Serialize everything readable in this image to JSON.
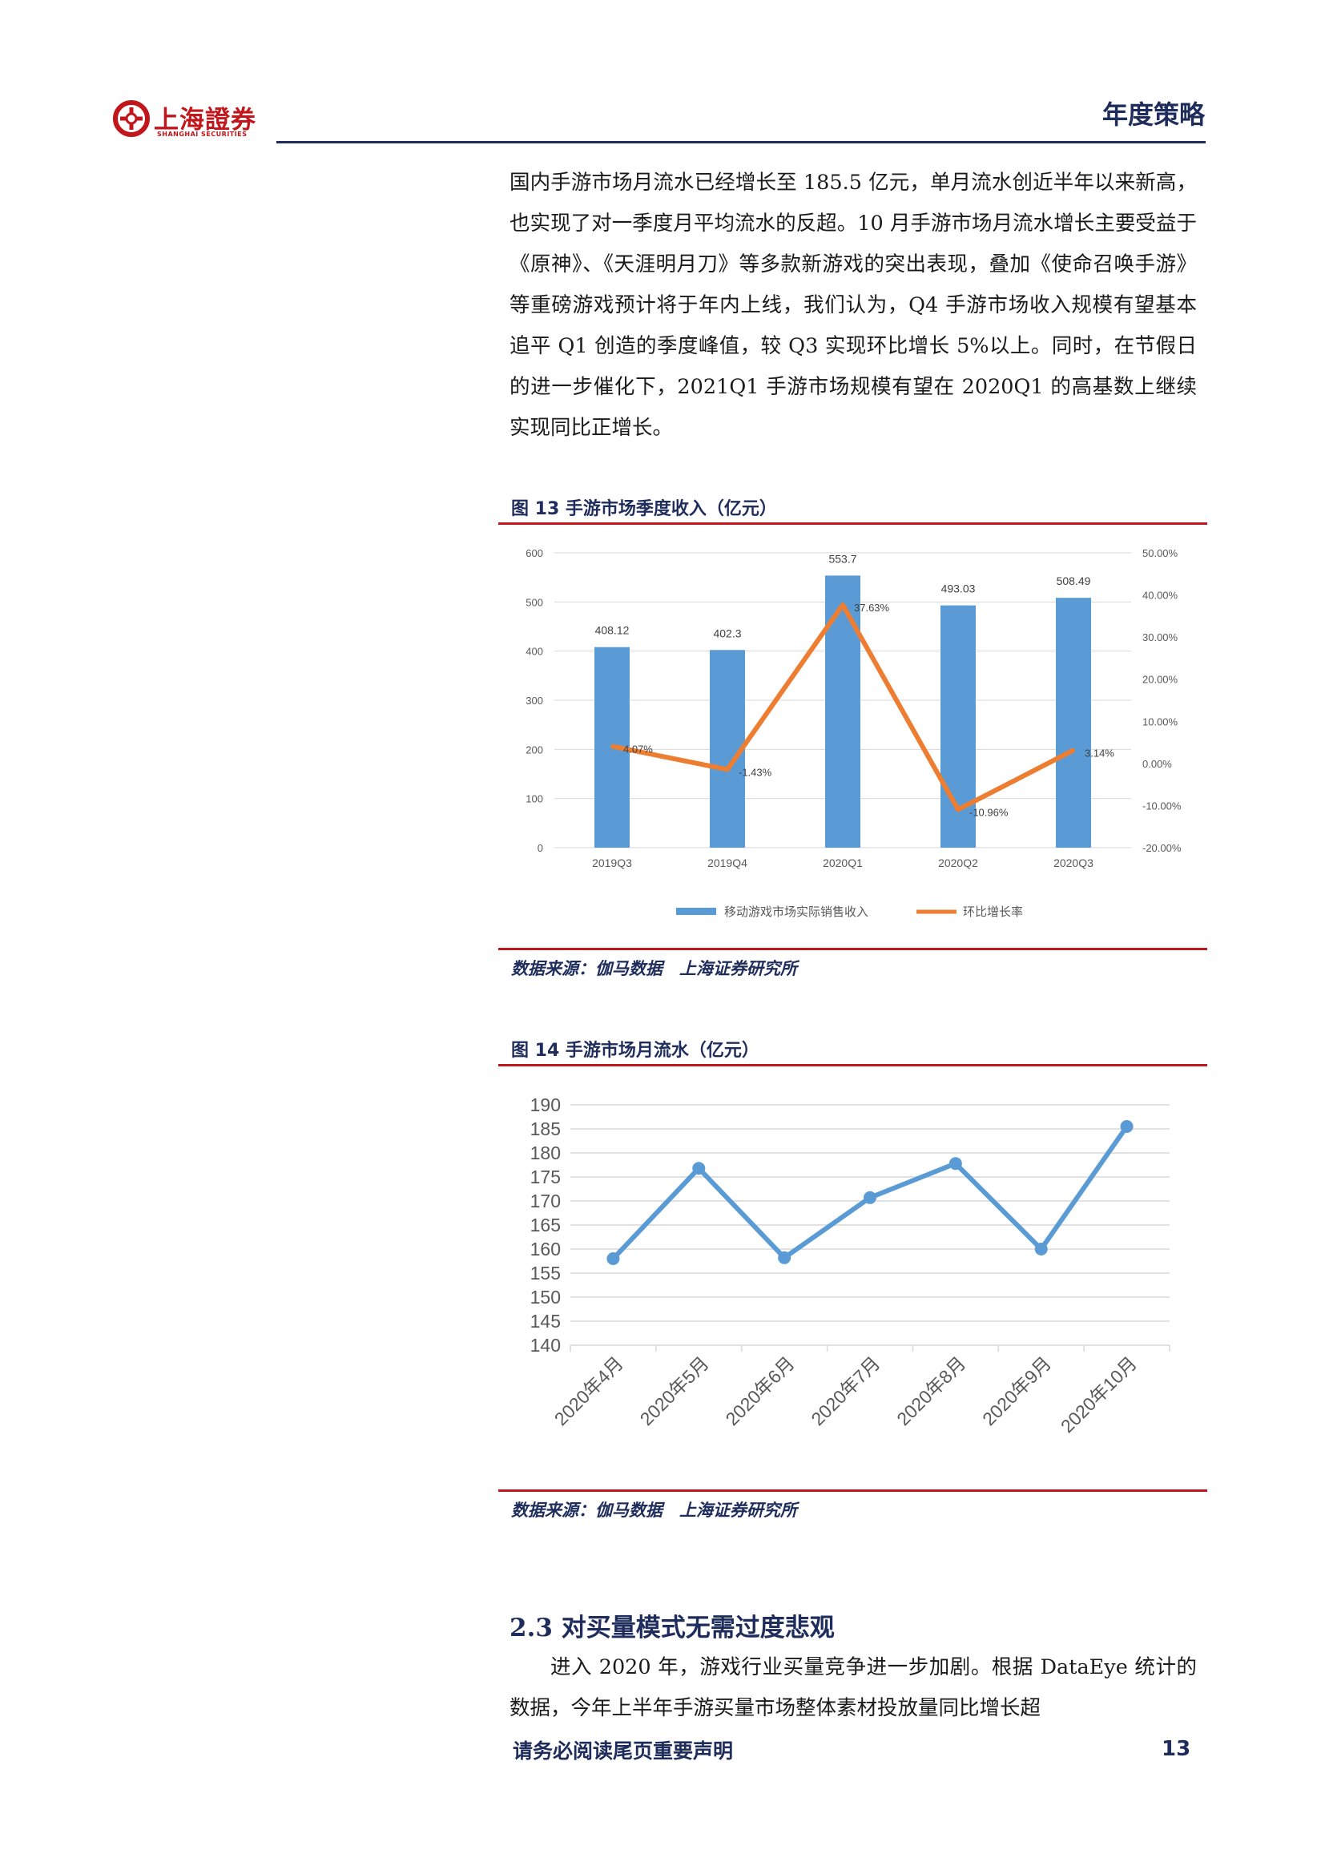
{
  "header": {
    "logo_text": "上海證券",
    "logo_sub": "SHANGHAI SECURITIES",
    "title": "年度策略"
  },
  "intro_paragraph": "国内手游市场月流水已经增长至 185.5 亿元，单月流水创近半年以来新高，也实现了对一季度月平均流水的反超。10 月手游市场月流水增长主要受益于《原神》、《天涯明月刀》等多款新游戏的突出表现，叠加《使命召唤手游》等重磅游戏预计将于年内上线，我们认为，Q4 手游市场收入规模有望基本追平 Q1 创造的季度峰值，较 Q3 实现环比增长 5%以上。同时，在节假日的进一步催化下，2021Q1 手游市场规模有望在 2020Q1 的高基数上继续实现同比正增长。",
  "figure13": {
    "title": "图 13 手游市场季度收入（亿元）",
    "source": "数据来源：伽马数据　上海证券研究所"
  },
  "figure14": {
    "title": "图 14 手游市场月流水（亿元）",
    "source": "数据来源：伽马数据　上海证券研究所"
  },
  "section": {
    "heading": "2.3 对买量模式无需过度悲观",
    "paragraph": "进入 2020 年，游戏行业买量竞争进一步加剧。根据 DataEye 统计的数据，今年上半年手游买量市场整体素材投放量同比增长超"
  },
  "footer": {
    "note": "请务必阅读尾页重要声明",
    "page_number": "13"
  },
  "colors": {
    "navy": "#1f2d5c",
    "red": "#c0161c",
    "bar_blue": "#5b9bd5",
    "line_orange": "#ed7d31"
  },
  "chart_data": [
    {
      "type": "bar",
      "categories": [
        "2019Q3",
        "2019Q4",
        "2020Q1",
        "2020Q2",
        "2020Q3"
      ],
      "series": [
        {
          "name": "移动游戏市场实际销售收入",
          "type": "bar",
          "axis": "left",
          "values": [
            408.12,
            402.3,
            553.7,
            493.03,
            508.49
          ],
          "labels": [
            "408.12",
            "402.3",
            "553.7",
            "493.03",
            "508.49"
          ]
        },
        {
          "name": "环比增长率",
          "type": "line",
          "axis": "right",
          "values": [
            4.07,
            -1.43,
            37.63,
            -10.96,
            3.14
          ],
          "labels": [
            "4.07%",
            "-1.43%",
            "37.63%",
            "-10.96%",
            "3.14%"
          ]
        }
      ],
      "ylim": [
        0,
        600
      ],
      "yticks": [
        "0",
        "100",
        "200",
        "300",
        "400",
        "500",
        "600"
      ],
      "y2lim": [
        -20,
        50
      ],
      "y2ticks": [
        "-20.00%",
        "-10.00%",
        "0.00%",
        "10.00%",
        "20.00%",
        "30.00%",
        "40.00%",
        "50.00%"
      ],
      "grid": true,
      "legend": "bottom"
    },
    {
      "type": "line",
      "categories": [
        "2020年4月",
        "2020年5月",
        "2020年6月",
        "2020年7月",
        "2020年8月",
        "2020年9月",
        "2020年10月"
      ],
      "series": [
        {
          "values": [
            158,
            176.8,
            158.2,
            170.7,
            177.8,
            160,
            185.5
          ]
        }
      ],
      "ylim": [
        140,
        190
      ],
      "yticks": [
        "140",
        "145",
        "150",
        "155",
        "160",
        "165",
        "170",
        "175",
        "180",
        "185",
        "190"
      ],
      "grid": true
    }
  ]
}
